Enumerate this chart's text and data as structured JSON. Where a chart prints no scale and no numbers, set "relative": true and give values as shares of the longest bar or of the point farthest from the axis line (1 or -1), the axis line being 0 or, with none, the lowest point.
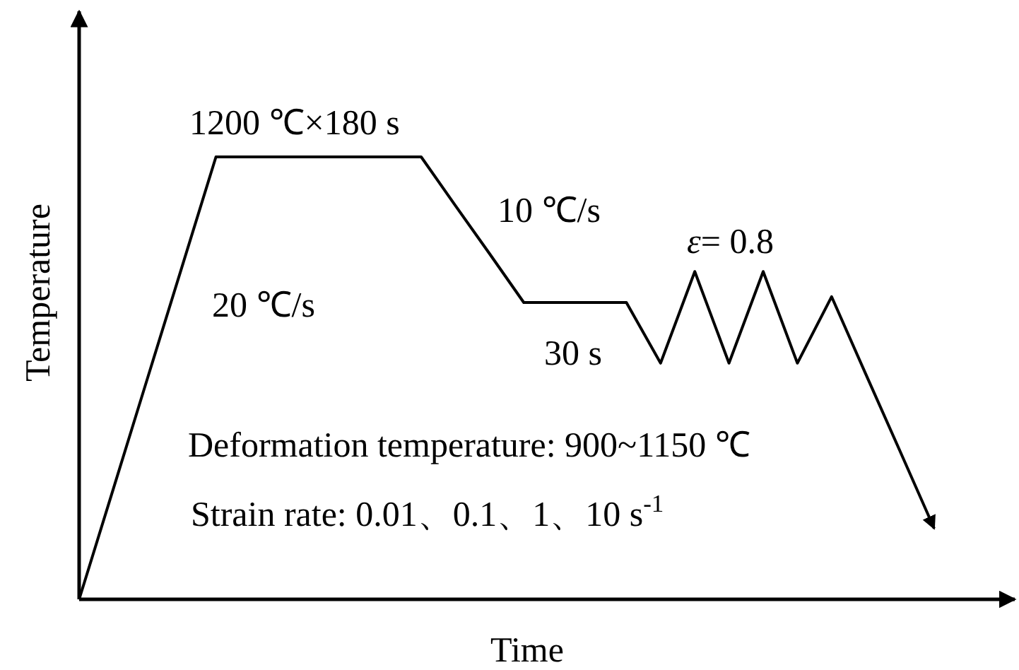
{
  "chart_data": {
    "type": "line",
    "relative": true,
    "xlabel": "Time",
    "ylabel": "Temperature",
    "categories": [
      null,
      null,
      null,
      null,
      null,
      null,
      null,
      null,
      null,
      null,
      null,
      null,
      null,
      null,
      null,
      null,
      null,
      null,
      null,
      null,
      null,
      null,
      null,
      null,
      null,
      null
    ],
    "series": [
      {
        "color": "#000000",
        "values": [
          0,
          0.25,
          0.5,
          0.75,
          1,
          1,
          1,
          1,
          1,
          1,
          1,
          0.89,
          0.781,
          0.671,
          0.671,
          0.671,
          0.671,
          0.534,
          0.741,
          0.534,
          0.741,
          0.534,
          0.684,
          0.509,
          0.335,
          0.16
        ]
      }
    ],
    "annotations": [
      "1200 ℃×180 s",
      "10 ℃/s",
      "20 ℃/s",
      "30 s",
      "*ε*= 0.8",
      "Deformation temperature: 900~1150 ℃",
      "Strain rate: 0.01、0.1、1、10 s$^{-1}$"
    ]
  }
}
